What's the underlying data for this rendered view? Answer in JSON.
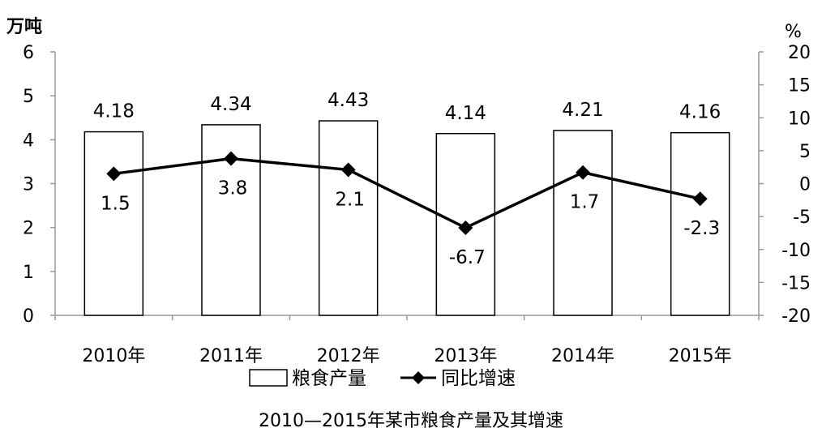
{
  "chart_data": {
    "type": "bar",
    "categories": [
      "2010年",
      "2011年",
      "2012年",
      "2013年",
      "2014年",
      "2015年"
    ],
    "series": [
      {
        "name": "粮食产量",
        "type": "bar",
        "axis": "left",
        "values": [
          4.18,
          4.34,
          4.43,
          4.14,
          4.21,
          4.16
        ],
        "labels": [
          "4.18",
          "4.34",
          "4.43",
          "4.14",
          "4.21",
          "4.16"
        ]
      },
      {
        "name": "同比增速",
        "type": "line",
        "axis": "right",
        "values": [
          1.5,
          3.8,
          2.1,
          -6.7,
          1.7,
          -2.3
        ],
        "labels": [
          "1.5",
          "3.8",
          "2.1",
          "-6.7",
          "1.7",
          "-2.3"
        ]
      }
    ],
    "y_left": {
      "unit": "万吨",
      "ylim": [
        0,
        6
      ],
      "ticks": [
        "0",
        "1",
        "2",
        "3",
        "4",
        "5",
        "6"
      ]
    },
    "y_right": {
      "unit": "%",
      "ylim": [
        -20,
        20
      ],
      "ticks": [
        "-20",
        "-15",
        "-10",
        "-5",
        "0",
        "5",
        "10",
        "15",
        "20"
      ]
    },
    "grid": false,
    "legend_position": "bottom",
    "caption": "2010—2015年某市粮食产量及其增速"
  },
  "colors": {
    "bar_fill": "#ffffff",
    "bar_stroke": "#000000",
    "line": "#000000",
    "axis": "#999999"
  }
}
